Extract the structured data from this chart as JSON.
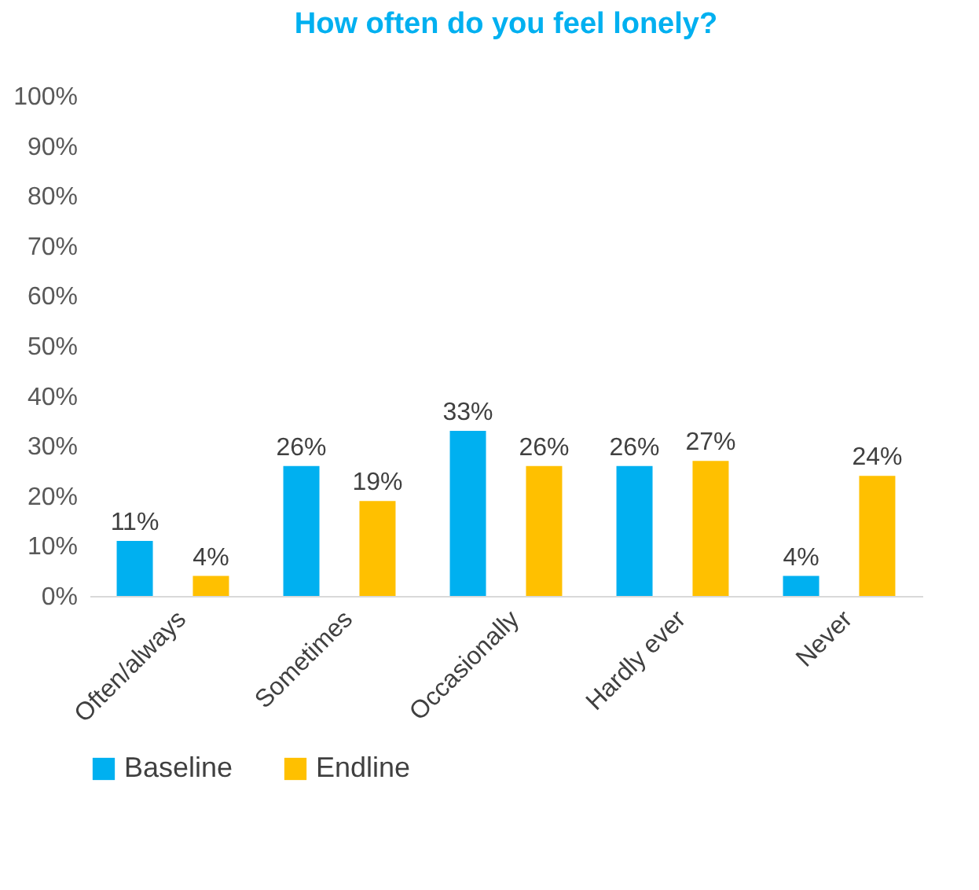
{
  "chart_data": {
    "type": "bar",
    "title": "How often do you feel lonely?",
    "categories": [
      "Often/always",
      "Sometimes",
      "Occasionally",
      "Hardly ever",
      "Never"
    ],
    "series": [
      {
        "name": "Baseline",
        "color": "#00b0f0",
        "values": [
          11,
          26,
          33,
          26,
          4
        ],
        "value_labels": [
          "11%",
          "26%",
          "33%",
          "26%",
          "4%"
        ]
      },
      {
        "name": "Endline",
        "color": "#ffc000",
        "values": [
          4,
          19,
          26,
          27,
          24
        ],
        "value_labels": [
          "4%",
          "19%",
          "26%",
          "27%",
          "24%"
        ]
      }
    ],
    "ylim": [
      0,
      100
    ],
    "yticks": [
      {
        "value": 0,
        "label": "0%"
      },
      {
        "value": 10,
        "label": "10%"
      },
      {
        "value": 20,
        "label": "20%"
      },
      {
        "value": 30,
        "label": "30%"
      },
      {
        "value": 40,
        "label": "40%"
      },
      {
        "value": 50,
        "label": "50%"
      },
      {
        "value": 60,
        "label": "60%"
      },
      {
        "value": 70,
        "label": "70%"
      },
      {
        "value": 80,
        "label": "80%"
      },
      {
        "value": 90,
        "label": "90%"
      },
      {
        "value": 100,
        "label": "100%"
      }
    ],
    "legend": "bottom"
  }
}
